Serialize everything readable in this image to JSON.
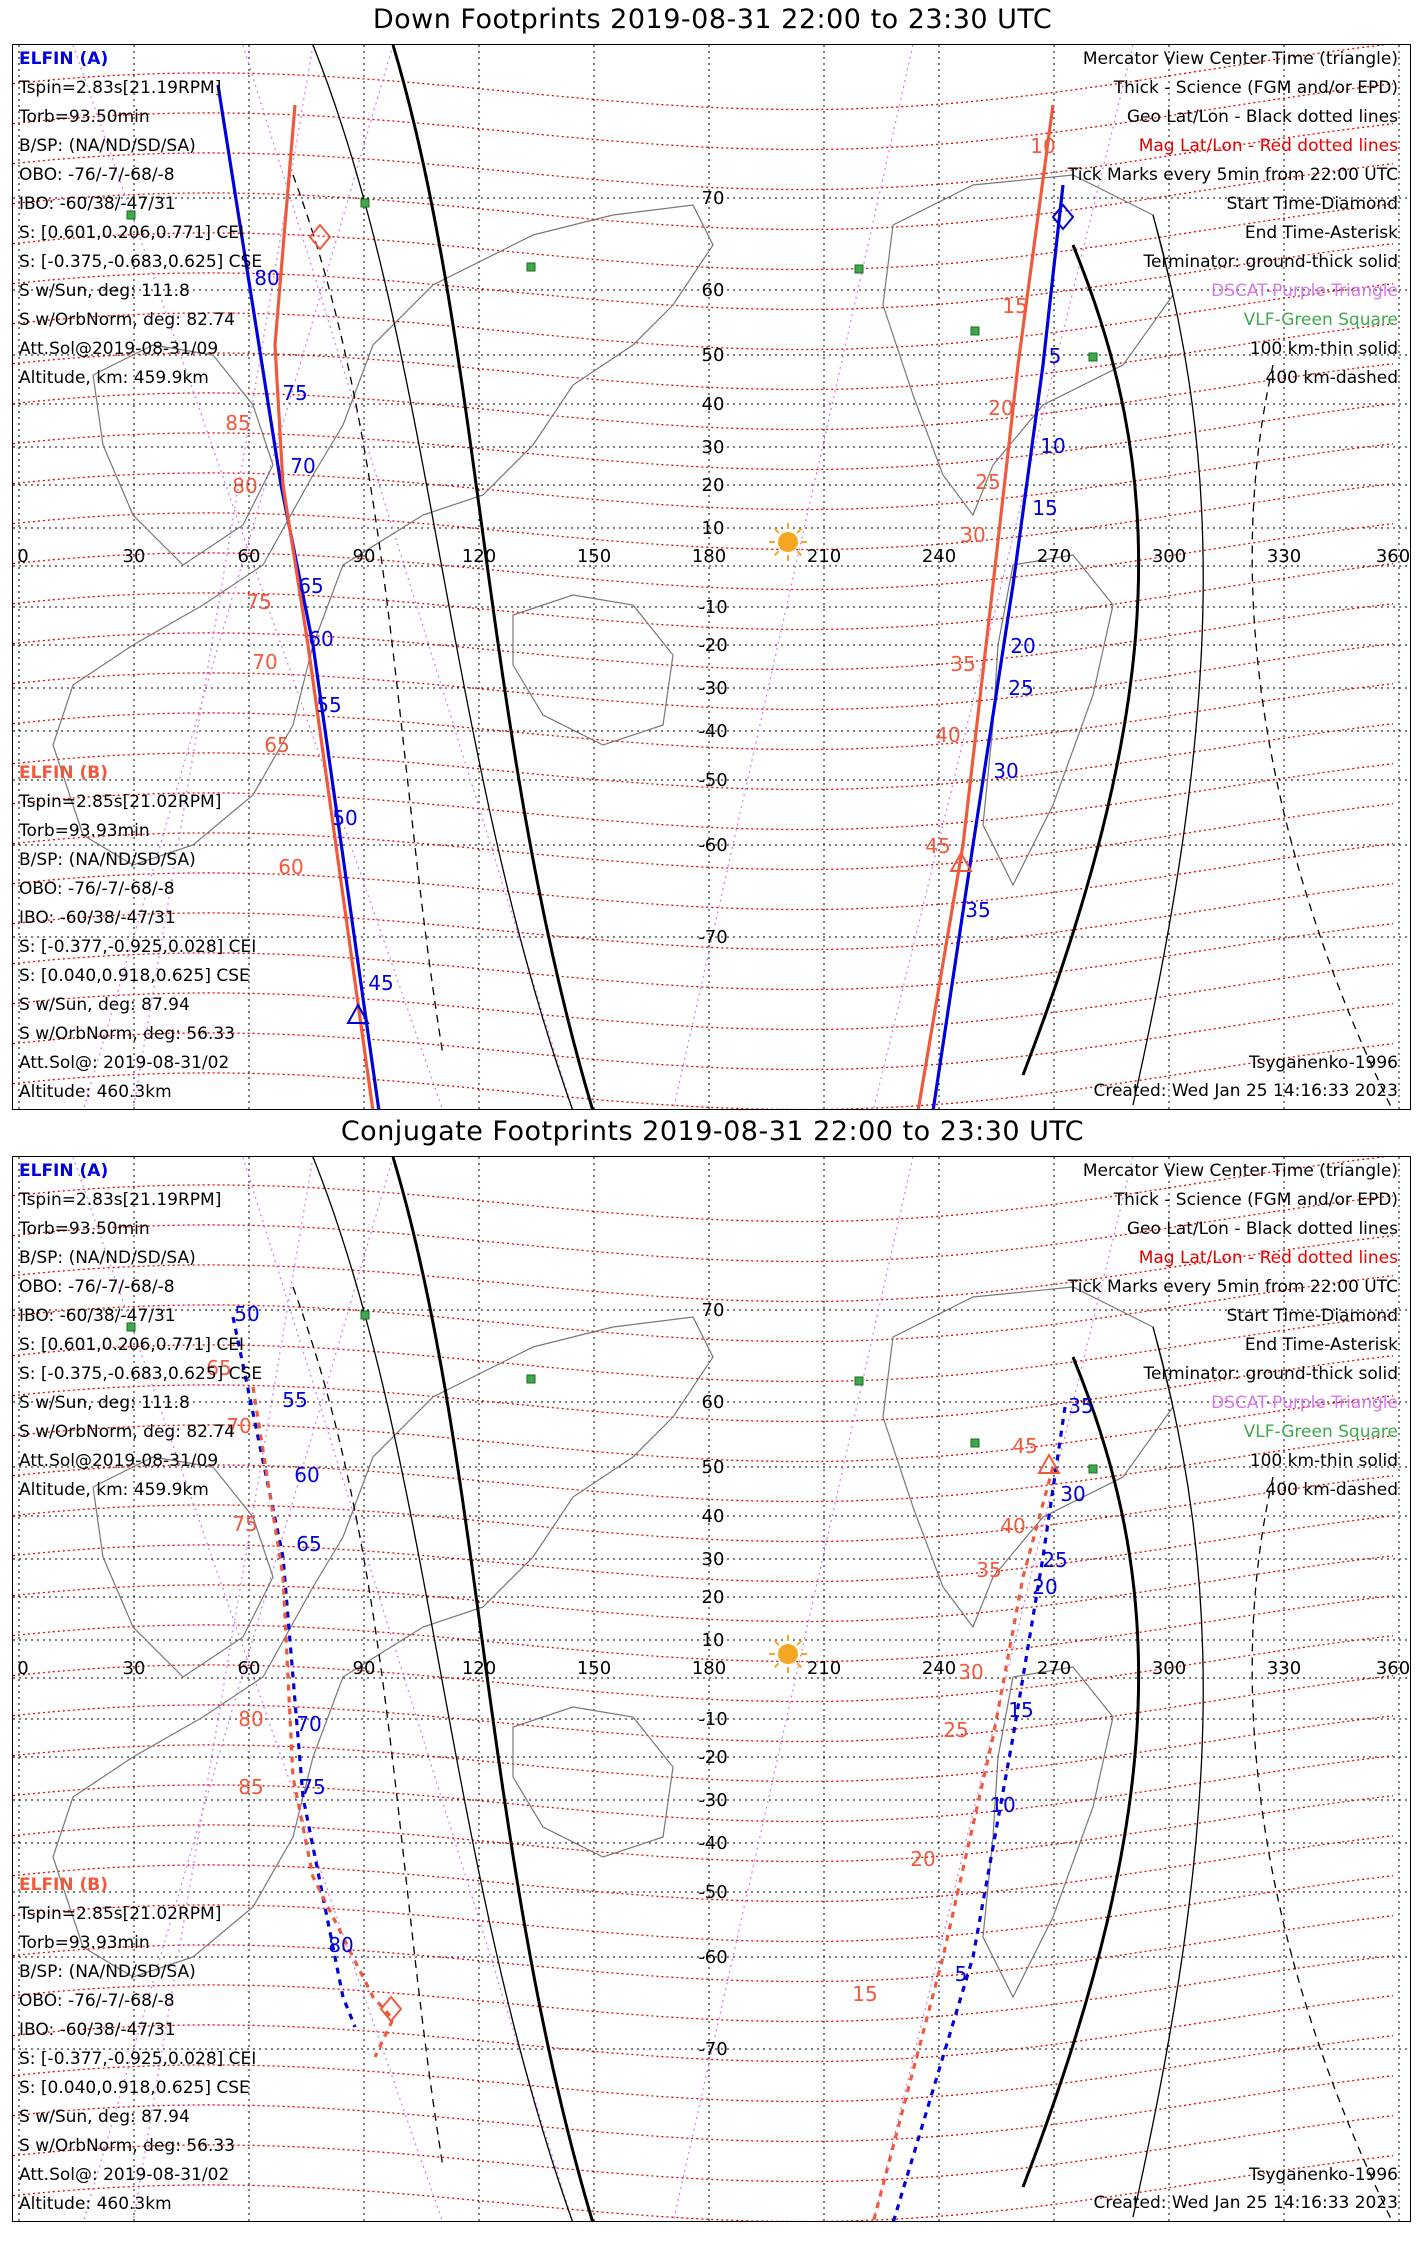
{
  "down": {
    "title": "Down Footprints 2019-08-31 22:00 to 23:30 UTC",
    "sc_a": {
      "name": "ELFIN (A)",
      "lines": [
        "Tspin=2.83s[21.19RPM]",
        "Torb=93.50min",
        "B/SP: (NA/ND/SD/SA)",
        "OBO: -76/-7/-68/-8",
        "IBO: -60/38/-47/31",
        "S: [0.601,0.206,0.771] CEI",
        "S: [-0.375,-0.683,0.625] CSE",
        "S w/Sun, deg: 111.8",
        "S w/OrbNorm, deg: 82.74",
        "Att.Sol@2019-08-31/09",
        "Altitude, km: 459.9km"
      ]
    },
    "sc_b": {
      "name": "ELFIN (B)",
      "lines": [
        "Tspin=2.85s[21.02RPM]",
        "Torb=93.93min",
        "B/SP: (NA/ND/SD/SA)",
        "OBO: -76/-7/-68/-8",
        "IBO: -60/38/-47/31",
        "S: [-0.377,-0.925,0.028] CEI",
        "S: [0.040,0.918,0.625] CSE",
        "S w/Sun, deg: 87.94",
        "S w/OrbNorm, deg: 56.33",
        "Att.Sol@: 2019-08-31/02",
        "Altitude: 460.3km"
      ]
    },
    "legend": {
      "l1": "Mercator View Center Time (triangle)",
      "l2": "Thick - Science (FGM and/or EPD)",
      "l3": "Geo Lat/Lon - Black dotted lines",
      "l4": "Mag Lat/Lon - Red dotted lines",
      "l5": "Tick Marks every 5min from 22:00 UTC",
      "l6": "Start Time-Diamond",
      "l7": "End Time-Asterisk",
      "l8": "Terminator: ground-thick solid",
      "l9": "DSCAT-Purple Triangle",
      "l10": "VLF-Green Square",
      "l11": "100 km-thin solid",
      "l12": "400 km-dashed"
    },
    "model": "Tsyganenko-1996",
    "created": "Created: Wed Jan 25 14:16:33 2023",
    "lon_labels": [
      "0",
      "30",
      "60",
      "90",
      "120",
      "150",
      "180",
      "210",
      "240",
      "270",
      "300",
      "330",
      "360"
    ],
    "lat_labels": [
      "70",
      "60",
      "50",
      "40",
      "30",
      "20",
      "10",
      "-10",
      "-20",
      "-30",
      "-40",
      "-50",
      "-60",
      "-70"
    ],
    "track_a_labels": [
      "80",
      "75",
      "70",
      "65",
      "60",
      "55",
      "50",
      "45",
      "5",
      "10",
      "15",
      "20",
      "25",
      "30",
      "35"
    ],
    "track_b_labels": [
      "85",
      "80",
      "75",
      "70",
      "65",
      "60",
      "10",
      "15",
      "20",
      "25",
      "30",
      "35",
      "40",
      "45"
    ]
  },
  "conj": {
    "title": "Conjugate Footprints 2019-08-31 22:00 to 23:30 UTC",
    "sc_a": {
      "name": "ELFIN (A)",
      "lines": [
        "Tspin=2.83s[21.19RPM]",
        "Torb=93.50min",
        "B/SP: (NA/ND/SD/SA)",
        "OBO: -76/-7/-68/-8",
        "IBO: -60/38/-47/31",
        "S: [0.601,0.206,0.771] CEI",
        "S: [-0.375,-0.683,0.625] CSE",
        "S w/Sun, deg: 111.8",
        "S w/OrbNorm, deg: 82.74",
        "Att.Sol@2019-08-31/09",
        "Altitude, km: 459.9km"
      ]
    },
    "sc_b": {
      "name": "ELFIN (B)",
      "lines": [
        "Tspin=2.85s[21.02RPM]",
        "Torb=93.93min",
        "B/SP: (NA/ND/SD/SA)",
        "OBO: -76/-7/-68/-8",
        "IBO: -60/38/-47/31",
        "S: [-0.377,-0.925,0.028] CEI",
        "S: [0.040,0.918,0.625] CSE",
        "S w/Sun, deg: 87.94",
        "S w/OrbNorm, deg: 56.33",
        "Att.Sol@: 2019-08-31/02",
        "Altitude: 460.3km"
      ]
    },
    "legend": {
      "l1": "Mercator View Center Time (triangle)",
      "l2": "Thick - Science (FGM and/or EPD)",
      "l3": "Geo Lat/Lon - Black dotted lines",
      "l4": "Mag Lat/Lon - Red dotted lines",
      "l5": "Tick Marks every 5min from 22:00 UTC",
      "l6": "Start Time-Diamond",
      "l7": "End Time-Asterisk",
      "l8": "Terminator: ground-thick solid",
      "l9": "DSCAT-Purple Triangle",
      "l10": "VLF-Green Square",
      "l11": "100 km-thin solid",
      "l12": "400 km-dashed"
    },
    "model": "Tsyganenko-1996",
    "created": "Created: Wed Jan 25 14:16:33 2023",
    "lon_labels": [
      "0",
      "30",
      "60",
      "90",
      "120",
      "150",
      "180",
      "210",
      "240",
      "270",
      "300",
      "330",
      "360"
    ],
    "lat_labels": [
      "70",
      "60",
      "50",
      "40",
      "30",
      "20",
      "10",
      "-10",
      "-20",
      "-30",
      "-40",
      "-50",
      "-60",
      "-70"
    ],
    "track_a_labels": [
      "50",
      "55",
      "60",
      "65",
      "70",
      "75",
      "80",
      "35",
      "30",
      "25",
      "20",
      "15",
      "10",
      "5"
    ],
    "track_b_labels": [
      "65",
      "70",
      "75",
      "80",
      "85",
      "45",
      "40",
      "35",
      "30",
      "25",
      "20",
      "15"
    ]
  },
  "colors": {
    "sc_a": "#0000dd",
    "sc_b": "#f05a3c",
    "mag_grid": "#e60000",
    "geo_grid": "#000000",
    "dscat": "#d478e8",
    "vlf": "#3ea84a",
    "sun": "#f5a623"
  },
  "icons": {
    "sun": "sun-icon",
    "vlf": "green-square-icon",
    "start": "diamond-icon",
    "center": "triangle-icon"
  }
}
